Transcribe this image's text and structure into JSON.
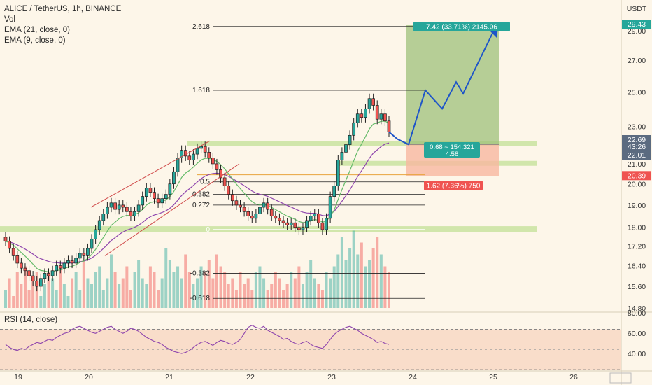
{
  "header": {
    "symbol_line": "ALICE / TetherUS, 1h, BINANCE",
    "indicators": [
      "Vol",
      "EMA (21, close, 0)",
      "EMA (9, close, 0)"
    ],
    "rsi_label": "RSI (14, close)"
  },
  "price_axis": {
    "currency": "USDT",
    "ticks": [
      "29.00",
      "27.00",
      "25.00",
      "23.00",
      "21.00",
      "20.00",
      "19.00",
      "18.00",
      "17.20",
      "16.40",
      "15.60",
      "14.80"
    ],
    "badges": [
      {
        "label": "29.43",
        "color": "#26a69a"
      },
      {
        "label": "22.69",
        "color": "#5b6b80"
      },
      {
        "label": "43:26",
        "color": "#5b6b80"
      },
      {
        "label": "22.01",
        "color": "#5b6b80"
      },
      {
        "label": "20.39",
        "color": "#ef5350"
      }
    ]
  },
  "rsi_axis": {
    "ticks": [
      "80.00",
      "60.00",
      "40.00"
    ]
  },
  "time_axis": {
    "ticks": [
      "19",
      "20",
      "21",
      "22",
      "23",
      "24",
      "25",
      "26"
    ]
  },
  "fib_levels": [
    "2.618",
    "1.618",
    "0.5",
    "0.382",
    "0.272",
    "0",
    "-0.382",
    "-0.618"
  ],
  "trade_box": {
    "target_label": "7.42 (33.71%) 2145.06",
    "entry_label_line1": "0.68 ~ 154.321",
    "entry_label_line2": "4.58",
    "stop_label": "1.62 (7.36%) 750",
    "profit_color": "#9dc07a",
    "loss_color": "#f8b8a0"
  },
  "colors": {
    "up": "#26a69a",
    "down": "#ef5350",
    "projection": "#1e55c8",
    "ema21": "#8e44ad",
    "ema9": "#66bb6a",
    "zone": "#c9e3a0"
  },
  "chart_data": {
    "type": "candlestick",
    "pair": "ALICE / TetherUS",
    "timeframe": "1h",
    "exchange": "BINANCE",
    "yscale": "log",
    "ylim": [
      14.8,
      30.2
    ],
    "x_ticks": [
      "19",
      "20",
      "21",
      "22",
      "23",
      "24",
      "25",
      "26"
    ],
    "ohlc_close": [
      17.4,
      17.1,
      16.8,
      16.5,
      16.3,
      16.2,
      16.0,
      15.8,
      15.6,
      15.9,
      16.1,
      16.0,
      16.2,
      16.4,
      16.3,
      16.5,
      16.6,
      16.5,
      16.7,
      16.9,
      16.8,
      17.1,
      17.5,
      17.9,
      18.3,
      18.6,
      18.9,
      19.1,
      18.8,
      19.0,
      18.9,
      18.7,
      18.5,
      18.7,
      19.0,
      19.4,
      19.8,
      19.6,
      19.3,
      19.1,
      19.3,
      19.5,
      20.0,
      20.6,
      21.3,
      21.7,
      21.4,
      21.2,
      21.5,
      21.8,
      21.9,
      21.6,
      21.3,
      21.0,
      20.7,
      20.3,
      19.9,
      19.5,
      19.2,
      19.0,
      18.9,
      18.7,
      18.5,
      18.4,
      18.6,
      18.9,
      19.1,
      18.8,
      18.5,
      18.4,
      18.3,
      18.2,
      18.1,
      18.2,
      18.0,
      17.9,
      18.0,
      18.3,
      18.5,
      18.6,
      18.2,
      17.9,
      18.4,
      19.4,
      19.9,
      21.2,
      21.6,
      22.0,
      22.5,
      23.2,
      23.7,
      23.5,
      24.0,
      24.6,
      24.2,
      23.4,
      23.7,
      23.3,
      22.69
    ],
    "ema21_end": 22.01,
    "zones": [
      {
        "name": "upper-support",
        "range": [
          22.0,
          22.2
        ]
      },
      {
        "name": "mid-zone",
        "range": [
          21.0,
          21.15
        ]
      },
      {
        "name": "lower-support",
        "range": [
          17.8,
          18.05
        ]
      }
    ],
    "fib_levels": {
      "2.618": 29.3,
      "1.618": 25.1,
      "0.5": 20.1,
      "0.382": 19.5,
      "0.272": 19.0,
      "0": 17.9,
      "-0.382": 16.1,
      "-0.618": 15.15
    },
    "long_position": {
      "entry": 22.01,
      "target": 29.43,
      "stop": 20.39,
      "target_text": "7.42 (33.71%) 2145.06",
      "stop_text": "1.62 (7.36%) 750"
    },
    "projection_path": [
      22.69,
      22.3,
      22.01,
      25.1,
      24.0,
      25.6,
      24.9,
      29.43
    ],
    "rsi": {
      "ylim": [
        30,
        85
      ],
      "levels": [
        70,
        30
      ],
      "values": [
        55,
        52,
        50,
        49,
        51,
        50,
        53,
        55,
        57,
        56,
        58,
        60,
        59,
        62,
        64,
        66,
        67,
        70,
        72,
        73,
        71,
        69,
        67,
        66,
        68,
        70,
        72,
        73,
        70,
        68,
        66,
        68,
        71,
        70,
        68,
        65,
        62,
        60,
        58,
        57,
        55,
        52,
        50,
        48,
        47,
        46,
        47,
        49,
        52,
        55,
        57,
        58,
        56,
        54,
        57,
        59,
        58,
        56,
        55,
        57,
        60,
        66,
        72,
        74,
        72,
        71,
        73,
        69,
        67,
        65,
        63,
        60,
        61,
        58,
        56,
        55,
        57,
        58,
        55,
        53,
        52,
        51,
        55,
        60,
        65,
        68,
        70,
        72,
        73,
        71,
        69,
        66,
        64,
        62,
        60,
        57,
        58,
        56,
        55
      ]
    }
  }
}
